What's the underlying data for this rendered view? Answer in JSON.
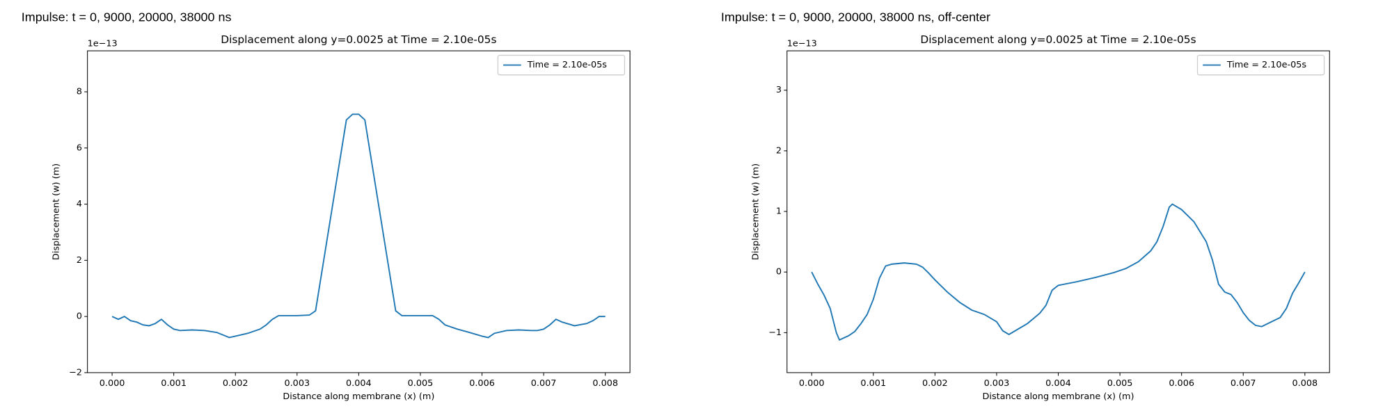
{
  "chart_data": [
    {
      "type": "line",
      "heading": "Impulse: t = 0, 9000, 20000, 38000 ns",
      "title": "Displacement along y=0.0025 at Time = 2.10e-05s",
      "xlabel": "Distance along membrane (x) (m)",
      "ylabel": "Displacement (w) (m)",
      "offset_text": "1e−13",
      "x": [
        0,
        0.0001,
        0.0002,
        0.0003,
        0.0004,
        0.0005,
        0.0006,
        0.0007,
        0.0008,
        0.0009,
        0.001,
        0.0011,
        0.0013,
        0.0015,
        0.0017,
        0.0019,
        0.002,
        0.0022,
        0.0024,
        0.0025,
        0.0026,
        0.0027,
        0.003,
        0.0032,
        0.0033,
        0.0038,
        0.0039,
        0.004,
        0.0041,
        0.0046,
        0.0047,
        0.005,
        0.0052,
        0.0053,
        0.0054,
        0.0056,
        0.0058,
        0.006,
        0.0061,
        0.0062,
        0.0064,
        0.0066,
        0.0068,
        0.0069,
        0.007,
        0.0071,
        0.0072,
        0.0073,
        0.0075,
        0.0077,
        0.0078,
        0.0079,
        0.008
      ],
      "series": [
        {
          "name": "Time = 2.10e-05s",
          "color": "#1f77b4",
          "values": [
            0,
            -0.1,
            0,
            -0.15,
            -0.2,
            -0.3,
            -0.33,
            -0.25,
            -0.1,
            -0.3,
            -0.45,
            -0.5,
            -0.48,
            -0.5,
            -0.57,
            -0.75,
            -0.7,
            -0.6,
            -0.45,
            -0.3,
            -0.1,
            0.03,
            0.03,
            0.05,
            0.2,
            7,
            7.2,
            7.2,
            7,
            0.2,
            0.03,
            0.03,
            0.03,
            -0.1,
            -0.3,
            -0.45,
            -0.57,
            -0.7,
            -0.75,
            -0.6,
            -0.5,
            -0.48,
            -0.5,
            -0.5,
            -0.45,
            -0.3,
            -0.1,
            -0.2,
            -0.33,
            -0.25,
            -0.15,
            0,
            0
          ]
        }
      ],
      "xlim": [
        -0.0004,
        0.0084
      ],
      "ylim": [
        -2,
        9.46
      ],
      "xticks": [
        {
          "value": 0,
          "label": "0.000"
        },
        {
          "value": 0.001,
          "label": "0.001"
        },
        {
          "value": 0.002,
          "label": "0.002"
        },
        {
          "value": 0.003,
          "label": "0.003"
        },
        {
          "value": 0.004,
          "label": "0.004"
        },
        {
          "value": 0.005,
          "label": "0.005"
        },
        {
          "value": 0.006,
          "label": "0.006"
        },
        {
          "value": 0.007,
          "label": "0.007"
        },
        {
          "value": 0.008,
          "label": "0.008"
        }
      ],
      "yticks": [
        {
          "value": -2,
          "label": "−2"
        },
        0,
        2,
        4,
        6,
        8
      ],
      "legend": "upper right"
    },
    {
      "type": "line",
      "heading": "Impulse: t = 0, 9000, 20000, 38000 ns, off-center",
      "title": "Displacement along y=0.0025 at Time = 2.10e-05s",
      "xlabel": "Distance along membrane (x) (m)",
      "ylabel": "Displacement (w) (m)",
      "offset_text": "1e−13",
      "x": [
        0,
        0.0001,
        0.0002,
        0.0003,
        0.0004,
        0.00045,
        0.0006,
        0.0007,
        0.0008,
        0.0009,
        0.001,
        0.0011,
        0.0012,
        0.0013,
        0.0015,
        0.0017,
        0.0018,
        0.0019,
        0.002,
        0.0022,
        0.0024,
        0.0026,
        0.0028,
        0.003,
        0.0031,
        0.0032,
        0.0033,
        0.0035,
        0.0037,
        0.0038,
        0.0039,
        0.004,
        0.0043,
        0.0046,
        0.0049,
        0.0051,
        0.0053,
        0.0055,
        0.0056,
        0.0057,
        0.0058,
        0.00585,
        0.006,
        0.0062,
        0.0064,
        0.0065,
        0.0066,
        0.0067,
        0.0068,
        0.0069,
        0.007,
        0.0071,
        0.0072,
        0.0073,
        0.0074,
        0.0076,
        0.0077,
        0.0078,
        0.0079,
        0.008
      ],
      "series": [
        {
          "name": "Time = 2.10e-05s",
          "color": "#1f77b4",
          "values": [
            0,
            -0.2,
            -0.38,
            -0.6,
            -1.0,
            -1.12,
            -1.05,
            -0.98,
            -0.85,
            -0.7,
            -0.45,
            -0.1,
            0.1,
            0.13,
            0.15,
            0.13,
            0.08,
            -0.02,
            -0.13,
            -0.33,
            -0.5,
            -0.63,
            -0.7,
            -0.82,
            -0.97,
            -1.03,
            -0.97,
            -0.85,
            -0.68,
            -0.55,
            -0.3,
            -0.22,
            -0.16,
            -0.09,
            -0.01,
            0.06,
            0.17,
            0.35,
            0.5,
            0.75,
            1.07,
            1.12,
            1.03,
            0.83,
            0.5,
            0.2,
            -0.2,
            -0.33,
            -0.37,
            -0.5,
            -0.67,
            -0.8,
            -0.88,
            -0.9,
            -0.85,
            -0.75,
            -0.6,
            -0.35,
            -0.18,
            0
          ]
        }
      ],
      "xlim": [
        -0.0004,
        0.0084
      ],
      "ylim": [
        -1.66,
        3.65
      ],
      "xticks": [
        {
          "value": 0,
          "label": "0.000"
        },
        {
          "value": 0.001,
          "label": "0.001"
        },
        {
          "value": 0.002,
          "label": "0.002"
        },
        {
          "value": 0.003,
          "label": "0.003"
        },
        {
          "value": 0.004,
          "label": "0.004"
        },
        {
          "value": 0.005,
          "label": "0.005"
        },
        {
          "value": 0.006,
          "label": "0.006"
        },
        {
          "value": 0.007,
          "label": "0.007"
        },
        {
          "value": 0.008,
          "label": "0.008"
        }
      ],
      "yticks": [
        {
          "value": -1,
          "label": "−1"
        },
        0,
        1,
        2,
        3
      ],
      "legend": "upper right"
    }
  ]
}
